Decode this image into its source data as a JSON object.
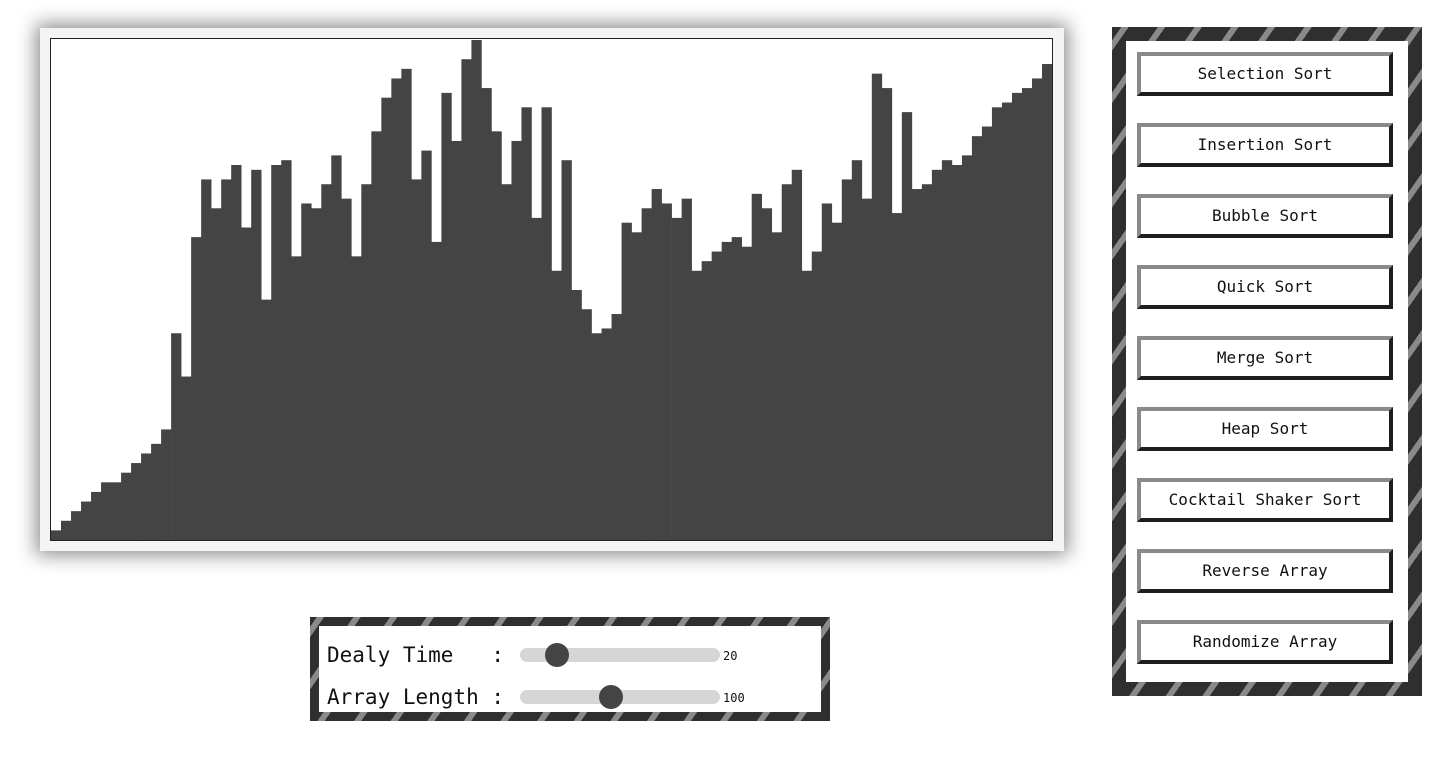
{
  "visualizer": {
    "bar_color": "#444444",
    "background_color": "#ffffff",
    "values": [
      2,
      4,
      6,
      8,
      10,
      12,
      12,
      14,
      16,
      18,
      20,
      23,
      43,
      34,
      63,
      75,
      69,
      75,
      78,
      65,
      77,
      50,
      78,
      79,
      59,
      70,
      69,
      74,
      80,
      71,
      59,
      74,
      85,
      92,
      96,
      98,
      75,
      81,
      62,
      93,
      83,
      100,
      104,
      94,
      85,
      74,
      83,
      90,
      67,
      90,
      56,
      79,
      52,
      48,
      43,
      44,
      47,
      66,
      64,
      69,
      73,
      70,
      67,
      71,
      56,
      58,
      60,
      62,
      63,
      61,
      72,
      69,
      64,
      74,
      77,
      56,
      60,
      70,
      66,
      75,
      79,
      71,
      97,
      94,
      68,
      89,
      73,
      74,
      77,
      79,
      78,
      80,
      84,
      86,
      90,
      91,
      93,
      94,
      96,
      99
    ]
  },
  "controls": {
    "delay": {
      "label": "Dealy Time   :",
      "value": "20",
      "fraction": 0.14
    },
    "length": {
      "label": "Array Length :",
      "value": "100",
      "fraction": 0.45
    }
  },
  "colors": {
    "panel_dark": "#2f2f2f",
    "panel_stripe": "#8a8a8a",
    "slider_track": "#d6d6d6",
    "slider_thumb": "#444444"
  },
  "sidebar": {
    "buttons": [
      {
        "label": "Selection Sort"
      },
      {
        "label": "Insertion Sort"
      },
      {
        "label": "Bubble Sort"
      },
      {
        "label": "Quick Sort"
      },
      {
        "label": "Merge Sort"
      },
      {
        "label": "Heap Sort"
      },
      {
        "label": "Cocktail Shaker Sort"
      },
      {
        "label": "Reverse Array"
      },
      {
        "label": "Randomize Array"
      }
    ]
  }
}
